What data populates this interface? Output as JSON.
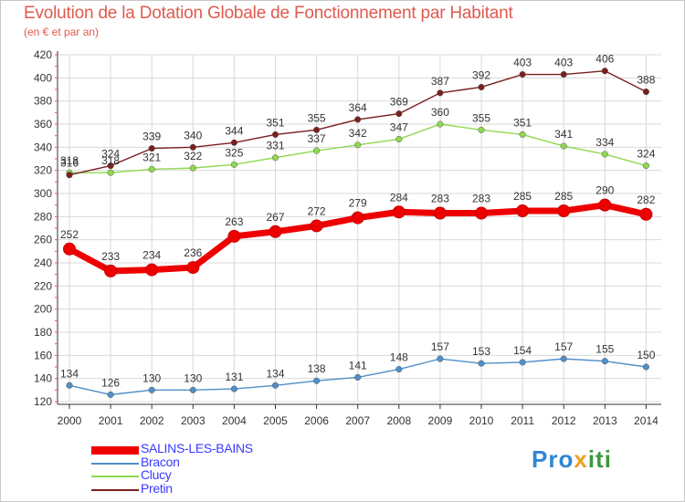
{
  "title": "Evolution de la Dotation Globale de Fonctionnement par Habitant",
  "subtitle": "(en € et par an)",
  "logo": {
    "part1": "Pro",
    "part2": "x",
    "part3": "iti"
  },
  "colors": {
    "title": "#e05a4e",
    "axis": "#333333",
    "tick_marks": "#e05a4e",
    "grid": "#d9d9d9",
    "legend_text": "#3a3aff"
  },
  "chart_data": {
    "type": "line",
    "title": "Evolution de la Dotation Globale de Fonctionnement par Habitant",
    "subtitle": "(en € et par an)",
    "xlabel": "",
    "ylabel": "",
    "ylim": [
      120,
      420
    ],
    "yticks": [
      120,
      140,
      160,
      180,
      200,
      220,
      240,
      260,
      280,
      300,
      320,
      340,
      360,
      380,
      400,
      420
    ],
    "grid": true,
    "categories": [
      "2000",
      "2001",
      "2002",
      "2003",
      "2004",
      "2005",
      "2006",
      "2007",
      "2008",
      "2009",
      "2010",
      "2011",
      "2012",
      "2013",
      "2014"
    ],
    "series": [
      {
        "name": "SALINS-LES-BAINS",
        "values": [
          252,
          233,
          234,
          236,
          263,
          267,
          272,
          279,
          284,
          283,
          283,
          285,
          285,
          290,
          282
        ],
        "color": "#ee0000",
        "emphasis": true
      },
      {
        "name": "Bracon",
        "values": [
          134,
          126,
          130,
          130,
          131,
          134,
          138,
          141,
          148,
          157,
          153,
          154,
          157,
          155,
          150
        ],
        "color": "#4f8fc8",
        "emphasis": false
      },
      {
        "name": "Clucy",
        "values": [
          318,
          318,
          321,
          322,
          325,
          331,
          337,
          342,
          347,
          360,
          355,
          351,
          341,
          334,
          324
        ],
        "color": "#8fd850",
        "emphasis": false
      },
      {
        "name": "Pretin",
        "values": [
          316,
          324,
          339,
          340,
          344,
          351,
          355,
          364,
          369,
          387,
          392,
          403,
          403,
          406,
          388
        ],
        "color": "#7a1f1f",
        "emphasis": false
      }
    ],
    "legend_position": "bottom-left"
  }
}
